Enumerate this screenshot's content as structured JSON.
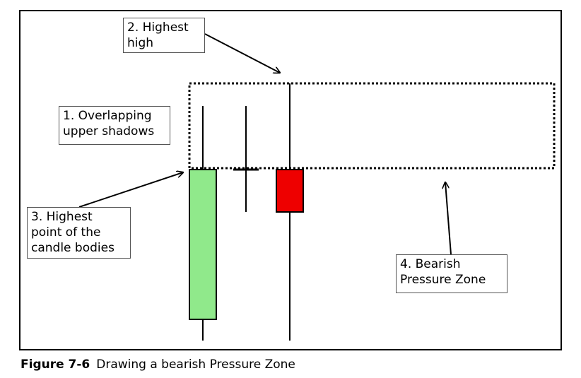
{
  "labels": {
    "overlapping_shadows": [
      "1. Overlapping",
      "upper shadows"
    ],
    "highest_high": [
      "2. Highest",
      "high"
    ],
    "highest_body_point": [
      "3. Highest",
      "point of the",
      "candle bodies"
    ],
    "bearish_pressure_zone": [
      "4. Bearish",
      "Pressure Zone"
    ]
  },
  "caption": {
    "number": "Figure 7-6",
    "text": "Drawing a bearish Pressure Zone"
  },
  "colors": {
    "bullish_body": "#90e98b",
    "bearish_body": "#ee0000",
    "outline": "#000000"
  }
}
